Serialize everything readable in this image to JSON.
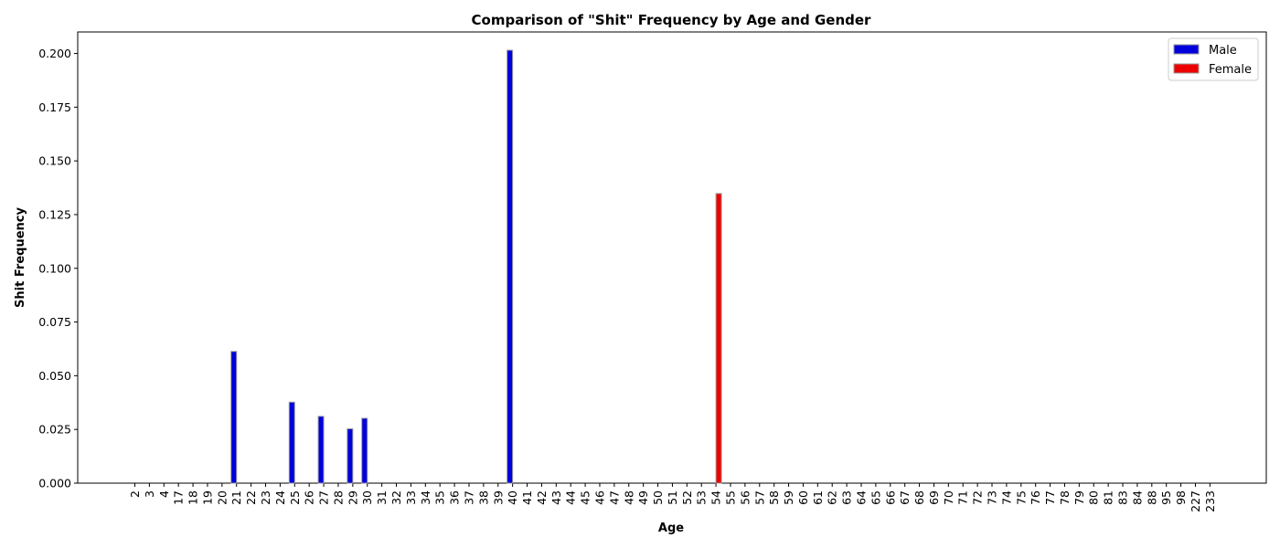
{
  "chart_data": {
    "type": "bar",
    "title": "Comparison of \"Shit\" Frequency by Age and Gender",
    "xlabel": "Age",
    "ylabel": "Shit Frequency",
    "ylim": [
      0,
      0.21
    ],
    "yticks": [
      0.0,
      0.025,
      0.05,
      0.075,
      0.1,
      0.125,
      0.15,
      0.175,
      0.2
    ],
    "ytick_labels": [
      "0.000",
      "0.025",
      "0.050",
      "0.075",
      "0.100",
      "0.125",
      "0.150",
      "0.175",
      "0.200"
    ],
    "grid": false,
    "legend_position": "top-right",
    "categories": [
      "2",
      "3",
      "4",
      "17",
      "18",
      "19",
      "20",
      "21",
      "22",
      "23",
      "24",
      "25",
      "26",
      "27",
      "28",
      "29",
      "30",
      "31",
      "32",
      "33",
      "34",
      "35",
      "36",
      "37",
      "38",
      "39",
      "40",
      "41",
      "42",
      "43",
      "44",
      "45",
      "46",
      "47",
      "48",
      "49",
      "50",
      "51",
      "52",
      "53",
      "54",
      "55",
      "56",
      "57",
      "58",
      "59",
      "60",
      "61",
      "62",
      "63",
      "64",
      "65",
      "66",
      "67",
      "68",
      "69",
      "70",
      "71",
      "72",
      "73",
      "74",
      "75",
      "76",
      "77",
      "78",
      "79",
      "80",
      "81",
      "83",
      "84",
      "88",
      "95",
      "98",
      "227",
      "233"
    ],
    "series": [
      {
        "name": "Male",
        "color": "#0000dd",
        "values": [
          0,
          0,
          0,
          0,
          0,
          0,
          0,
          0.0613,
          0,
          0,
          0,
          0.0377,
          0,
          0.0311,
          0,
          0.0253,
          0.0302,
          0,
          0,
          0,
          0,
          0,
          0,
          0,
          0,
          0,
          0.2015,
          0,
          0,
          0,
          0,
          0,
          0,
          0,
          0,
          0,
          0,
          0,
          0,
          0,
          0,
          0,
          0,
          0,
          0,
          0,
          0,
          0,
          0,
          0,
          0,
          0,
          0,
          0,
          0,
          0,
          0,
          0,
          0,
          0,
          0,
          0,
          0,
          0,
          0,
          0,
          0,
          0,
          0,
          0,
          0,
          0,
          0,
          0,
          0
        ]
      },
      {
        "name": "Female",
        "color": "#ee0000",
        "values": [
          0,
          0,
          0,
          0,
          0,
          0,
          0,
          0,
          0,
          0,
          0,
          0,
          0,
          0,
          0,
          0,
          0,
          0,
          0,
          0,
          0,
          0,
          0,
          0,
          0,
          0,
          0,
          0,
          0,
          0,
          0,
          0,
          0,
          0,
          0,
          0,
          0,
          0,
          0,
          0,
          0.1348,
          0,
          0,
          0,
          0,
          0,
          0,
          0,
          0,
          0,
          0,
          0,
          0,
          0,
          0,
          0,
          0,
          0,
          0,
          0,
          0,
          0,
          0,
          0,
          0,
          0,
          0,
          0,
          0,
          0,
          0,
          0,
          0,
          0,
          0
        ]
      }
    ]
  }
}
